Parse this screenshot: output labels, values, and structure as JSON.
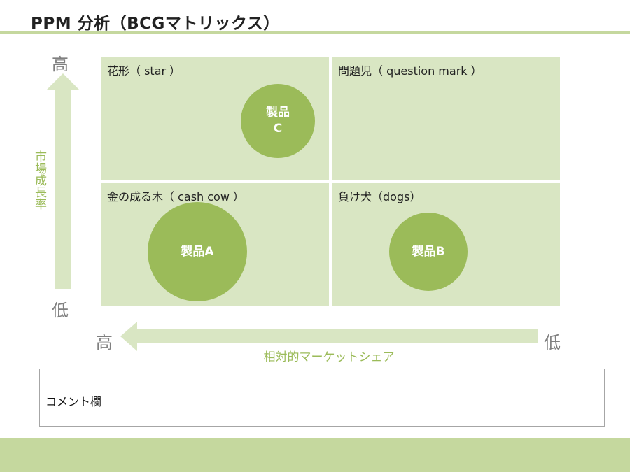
{
  "title": "PPM 分析（BCGマトリックス）",
  "quadrants": {
    "star": "花形（ star ）",
    "question_mark": "問題児（ question mark ）",
    "cash_cow": "金の成る木（ cash cow ）",
    "dogs": "負け犬（dogs）"
  },
  "products": {
    "c": "製品\nC",
    "a": "製品A",
    "b": "製品B"
  },
  "y_axis": {
    "high": "高",
    "low": "低",
    "title": "市場成長率"
  },
  "x_axis": {
    "high": "高",
    "low": "低",
    "title": "相対的マーケットシェア"
  },
  "comment": {
    "label": "コメント欄",
    "value": ""
  },
  "colors": {
    "quadrant_fill": "#d9e6c3",
    "bubble_fill": "#9bbb59",
    "arrow_fill": "#d9e6c3",
    "accent_rule": "#c5d89e",
    "axis_title": "#9bbb59",
    "axis_end": "#808080"
  }
}
